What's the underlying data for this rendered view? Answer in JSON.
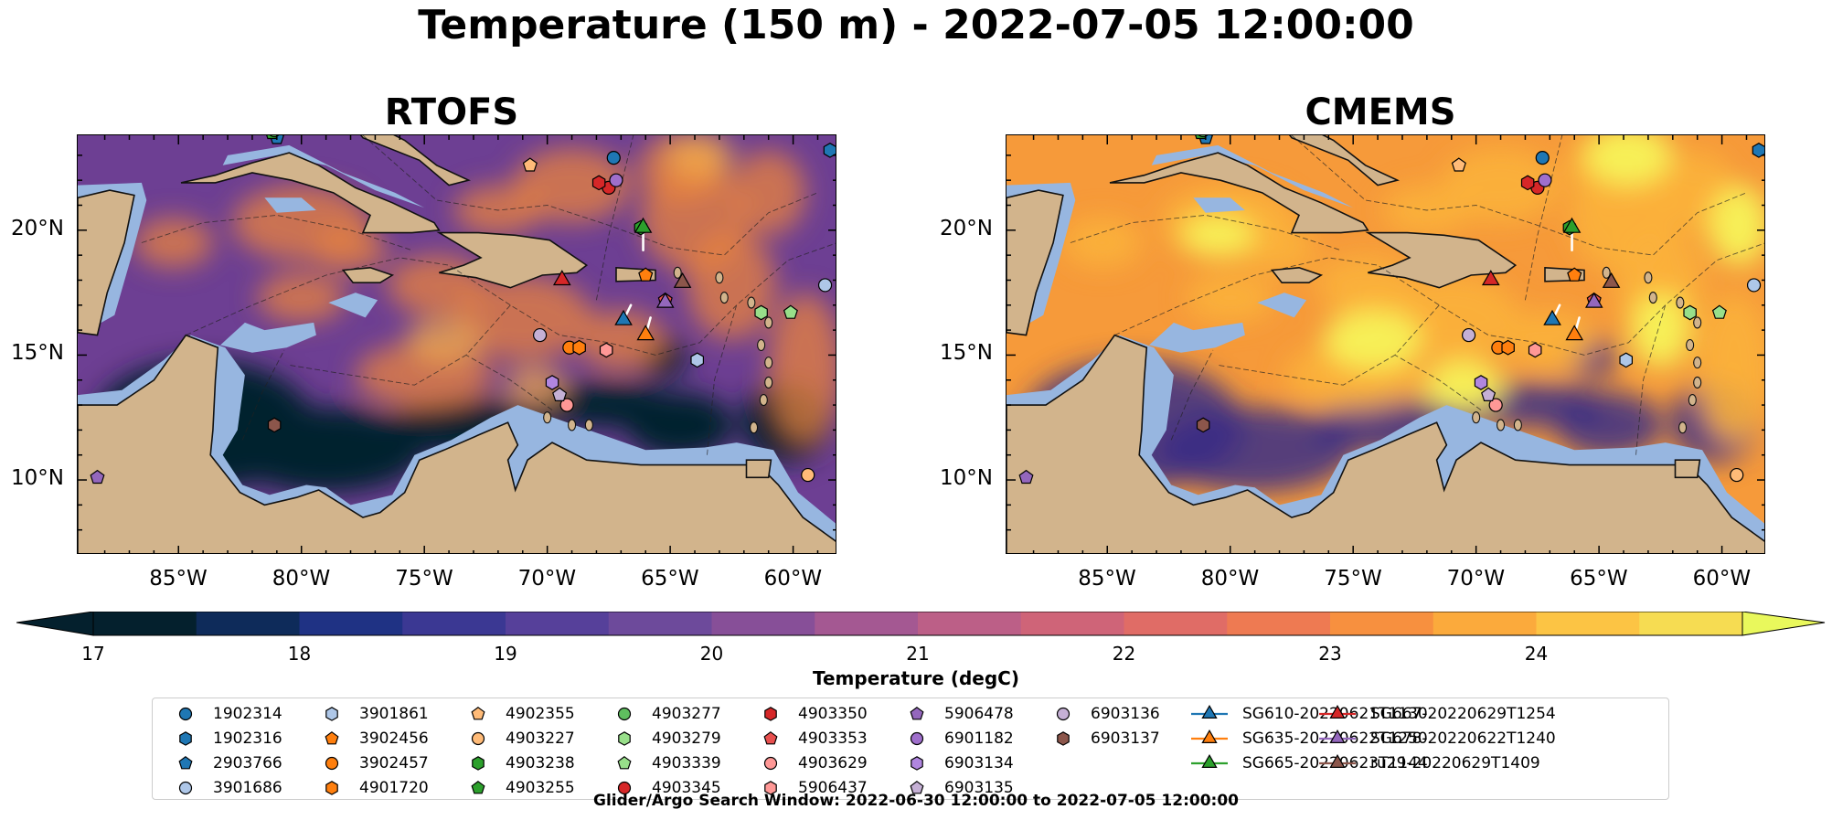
{
  "figure": {
    "title": "Temperature (150 m) - 2022-07-05 12:00:00",
    "search_window": "Glider/Argo Search Window: 2022-06-30 12:00:00 to 2022-07-05 12:00:00"
  },
  "panels": [
    {
      "title": "RTOFS",
      "style": "cool"
    },
    {
      "title": "CMEMS",
      "style": "warm"
    }
  ],
  "axes": {
    "lon_ticks": [
      "85°W",
      "80°W",
      "75°W",
      "70°W",
      "65°W",
      "60°W"
    ],
    "lat_ticks": [
      "20°N",
      "15°N",
      "10°N"
    ]
  },
  "colorbar": {
    "label": "Temperature (degC)",
    "ticks": [
      "17",
      "18",
      "19",
      "20",
      "21",
      "22",
      "23",
      "24"
    ],
    "colors": [
      "#04202d",
      "#0e2b5a",
      "#1f3284",
      "#3b3893",
      "#56409a",
      "#6d4a9b",
      "#874f98",
      "#a45892",
      "#bc5f87",
      "#cf6478",
      "#e06c66",
      "#ee7a52",
      "#f7903f",
      "#fbaa3c",
      "#fcc444",
      "#f6dc52"
    ],
    "extend_low": "#04202d",
    "extend_high": "#e9f85c"
  },
  "map_colors": {
    "land": "#d2b48c",
    "shelf": "#97b6e0",
    "deep": "#05222d",
    "ocean_cool": "#6d3f93",
    "ocean_warm": "#f69a3a",
    "hot": "#f7f35a"
  },
  "legend": [
    {
      "label": "1902314",
      "marker": "circle",
      "color": "#1f77b4"
    },
    {
      "label": "1902316",
      "marker": "hexagon",
      "color": "#1f77b4"
    },
    {
      "label": "2903766",
      "marker": "pentagon",
      "color": "#1f77b4"
    },
    {
      "label": "3901686",
      "marker": "circle",
      "color": "#aec7e8"
    },
    {
      "label": "3901861",
      "marker": "hexagon",
      "color": "#aec7e8"
    },
    {
      "label": "3902456",
      "marker": "pentagon",
      "color": "#ff7f0e"
    },
    {
      "label": "3902457",
      "marker": "circle",
      "color": "#ff7f0e"
    },
    {
      "label": "4901720",
      "marker": "hexagon",
      "color": "#ff7f0e"
    },
    {
      "label": "4902355",
      "marker": "pentagon",
      "color": "#ffbb78"
    },
    {
      "label": "4903227",
      "marker": "circle",
      "color": "#ffbb78"
    },
    {
      "label": "4903238",
      "marker": "hexagon",
      "color": "#2ca02c"
    },
    {
      "label": "4903255",
      "marker": "pentagon",
      "color": "#2ca02c"
    },
    {
      "label": "4903277",
      "marker": "circle",
      "color": "#5fbf5f"
    },
    {
      "label": "4903279",
      "marker": "hexagon",
      "color": "#98df8a"
    },
    {
      "label": "4903339",
      "marker": "pentagon",
      "color": "#98df8a"
    },
    {
      "label": "4903345",
      "marker": "circle",
      "color": "#d62728"
    },
    {
      "label": "4903350",
      "marker": "hexagon",
      "color": "#d62728"
    },
    {
      "label": "4903353",
      "marker": "pentagon",
      "color": "#e8504f"
    },
    {
      "label": "4903629",
      "marker": "circle",
      "color": "#ff9896"
    },
    {
      "label": "5906437",
      "marker": "hexagon",
      "color": "#ff9896"
    },
    {
      "label": "5906478",
      "marker": "pentagon",
      "color": "#9467bd"
    },
    {
      "label": "6901182",
      "marker": "circle",
      "color": "#9f6fcc"
    },
    {
      "label": "6903134",
      "marker": "hexagon",
      "color": "#b086e0"
    },
    {
      "label": "6903135",
      "marker": "pentagon",
      "color": "#c5b0d5"
    },
    {
      "label": "6903136",
      "marker": "circle",
      "color": "#c5b0d5"
    },
    {
      "label": "6903137",
      "marker": "hexagon",
      "color": "#8c564b"
    },
    {
      "label": "SG610-20220621T1130",
      "marker": "triangle",
      "color": "#1f77b4"
    },
    {
      "label": "SG635-20220622T1250",
      "marker": "triangle",
      "color": "#ff7f0e"
    },
    {
      "label": "SG665-20220623T1144",
      "marker": "triangle",
      "color": "#2ca02c"
    },
    {
      "label": "SG667-20220629T1254",
      "marker": "triangle",
      "color": "#d62728"
    },
    {
      "label": "SG678-20220622T1240",
      "marker": "triangle",
      "color": "#9467bd"
    },
    {
      "label": "ru29-20220629T1409",
      "marker": "triangle",
      "color": "#8c564b"
    }
  ],
  "platforms": [
    {
      "id": "1902314",
      "lon": -67.3,
      "lat": 22.9
    },
    {
      "id": "1902316",
      "lon": -58.5,
      "lat": 23.2
    },
    {
      "id": "2903766",
      "lon": -81.0,
      "lat": 23.7
    },
    {
      "id": "3901686",
      "lon": -58.7,
      "lat": 17.8
    },
    {
      "id": "3901861",
      "lon": -63.9,
      "lat": 14.8
    },
    {
      "id": "3902456",
      "lon": -66.0,
      "lat": 18.2
    },
    {
      "id": "3902457",
      "lon": -69.1,
      "lat": 15.3
    },
    {
      "id": "4901720",
      "lon": -68.7,
      "lat": 15.3
    },
    {
      "id": "4902355",
      "lon": -70.7,
      "lat": 22.6
    },
    {
      "id": "4903227",
      "lon": -59.4,
      "lat": 10.2
    },
    {
      "id": "4903238",
      "lon": -66.2,
      "lat": 20.1
    },
    {
      "id": "4903255",
      "lon": -81.2,
      "lat": 23.9
    },
    {
      "id": "4903277",
      "lon": -81.1,
      "lat": 24.0
    },
    {
      "id": "4903279",
      "lon": -61.3,
      "lat": 16.7
    },
    {
      "id": "4903339",
      "lon": -60.1,
      "lat": 16.7
    },
    {
      "id": "4903345",
      "lon": -67.5,
      "lat": 21.7
    },
    {
      "id": "4903350",
      "lon": -67.9,
      "lat": 21.9
    },
    {
      "id": "4903353",
      "lon": -65.2,
      "lat": 17.2
    },
    {
      "id": "4903629",
      "lon": -69.2,
      "lat": 13.0
    },
    {
      "id": "5906437",
      "lon": -67.6,
      "lat": 15.2
    },
    {
      "id": "5906478",
      "lon": -88.3,
      "lat": 10.1
    },
    {
      "id": "6901182",
      "lon": -67.2,
      "lat": 22.0
    },
    {
      "id": "6903134",
      "lon": -69.8,
      "lat": 13.9
    },
    {
      "id": "6903135",
      "lon": -69.5,
      "lat": 13.4
    },
    {
      "id": "6903136",
      "lon": -70.3,
      "lat": 15.8
    },
    {
      "id": "6903137",
      "lon": -81.1,
      "lat": 12.2
    }
  ],
  "gliders": [
    {
      "id": "SG610-20220621T1130",
      "lon": -66.9,
      "lat": 16.4
    },
    {
      "id": "SG635-20220622T1250",
      "lon": -66.0,
      "lat": 15.8
    },
    {
      "id": "SG665-20220623T1144",
      "lon": -66.1,
      "lat": 20.1
    },
    {
      "id": "SG667-20220629T1254",
      "lon": -69.4,
      "lat": 18.0
    },
    {
      "id": "SG678-20220622T1240",
      "lon": -65.2,
      "lat": 17.1
    },
    {
      "id": "ru29-20220629T1409",
      "lon": -64.5,
      "lat": 17.9
    }
  ]
}
